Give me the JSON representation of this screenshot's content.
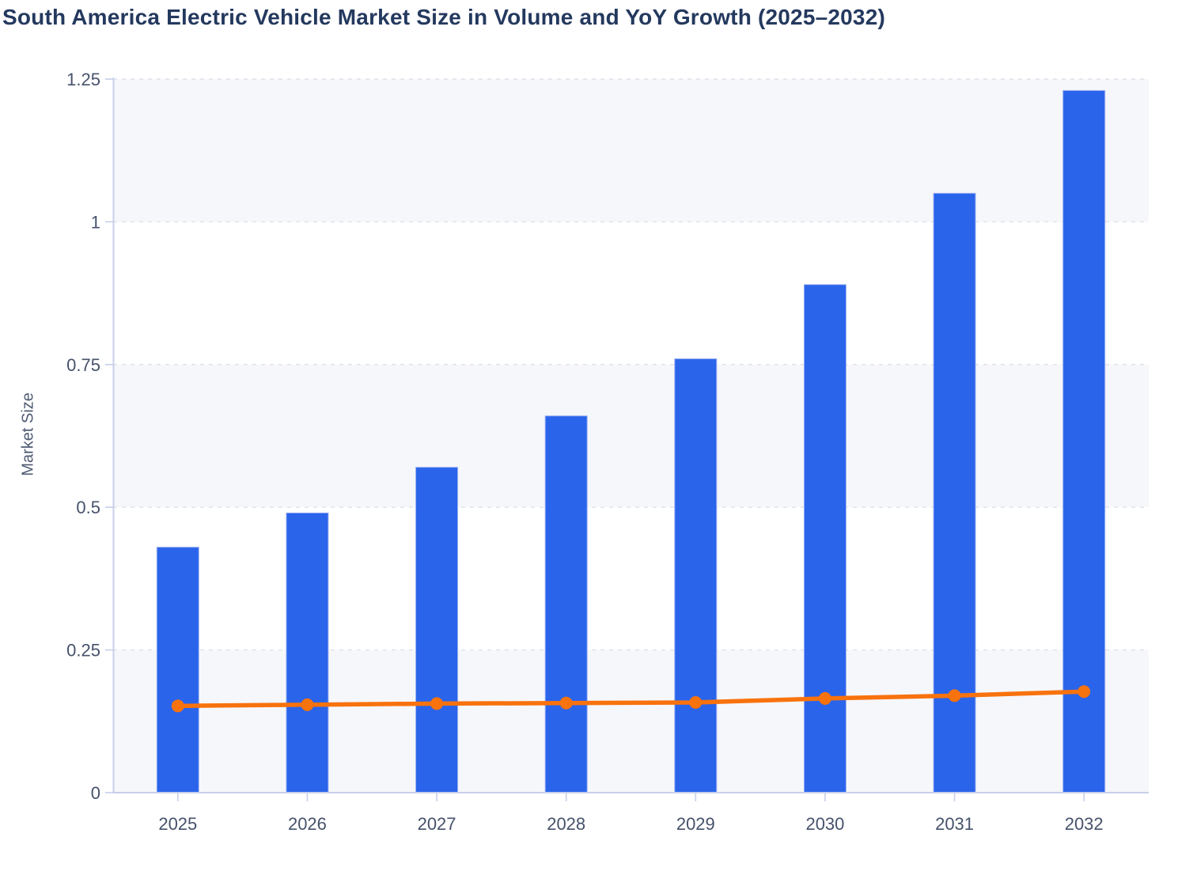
{
  "page": {
    "title": "South America Electric Vehicle Market Size in Volume and YoY Growth (2025–2032)"
  },
  "chart_data": {
    "type": "combo-bar-line",
    "title": "South America Electric Vehicle Market Size in Volume and YoY Growth (2025–2032)",
    "categories": [
      "2025",
      "2026",
      "2027",
      "2028",
      "2029",
      "2030",
      "2031",
      "2032"
    ],
    "series": [
      {
        "name": "Market Size",
        "type": "bar",
        "color": "#2964EB",
        "values": [
          0.43,
          0.49,
          0.57,
          0.66,
          0.76,
          0.89,
          1.05,
          1.23
        ]
      },
      {
        "name": "YoY Growth",
        "type": "line",
        "color": "#F8720D",
        "values": [
          0.152,
          0.154,
          0.156,
          0.157,
          0.158,
          0.165,
          0.17,
          0.177
        ]
      }
    ],
    "xlabel": "",
    "ylabel": "Market Size",
    "ylim": [
      0,
      1.25
    ],
    "yticks": {
      "values": [
        0,
        0.25,
        0.5,
        0.75,
        1,
        1.25
      ],
      "labels": [
        "0",
        "0.25",
        "0.5",
        "0.75",
        "1",
        "1.25"
      ]
    },
    "grid": "horizontal dashed",
    "legend_position": "none",
    "plot_style": {
      "band_colors": [
        "#F6F7FA",
        "#FFFFFF"
      ],
      "gridline_color": "#DEE1E8",
      "axis_color": "#C7CFEA",
      "bar_border_color": "#9DB0F2",
      "tick_label_color": "#46526B",
      "title_color": "#24395E"
    }
  }
}
